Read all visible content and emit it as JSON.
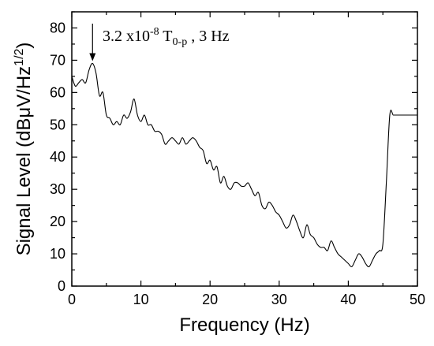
{
  "chart_data": {
    "type": "line",
    "xlabel": "Frequency (Hz)",
    "ylabel": {
      "main": "Signal Level (dBμV/Hz",
      "sup": "1/2",
      "close": ")"
    },
    "xlim": [
      0,
      50
    ],
    "ylim": [
      0,
      85
    ],
    "xticks": [
      0,
      10,
      20,
      30,
      40,
      50
    ],
    "yticks": [
      0,
      10,
      20,
      30,
      40,
      50,
      60,
      70,
      80
    ],
    "grid": false,
    "series": [
      {
        "color": "#000000",
        "x": [
          0,
          0.5,
          1,
          1.5,
          2,
          2.5,
          3,
          3.5,
          4,
          4.5,
          5,
          5.5,
          6,
          6.5,
          7,
          7.5,
          8,
          8.5,
          9,
          9.5,
          10,
          10.5,
          11,
          11.5,
          12,
          12.5,
          13,
          13.5,
          14,
          14.5,
          15,
          15.5,
          16,
          16.5,
          17,
          17.5,
          18,
          18.5,
          19,
          19.5,
          20,
          20.5,
          21,
          21.5,
          22,
          22.5,
          23,
          23.5,
          24,
          24.5,
          25,
          25.5,
          26,
          26.5,
          27,
          27.5,
          28,
          28.5,
          29,
          29.5,
          30,
          30.5,
          31,
          31.5,
          32,
          32.5,
          33,
          33.5,
          34,
          34.5,
          35,
          35.5,
          36,
          36.5,
          37,
          37.5,
          38,
          38.5,
          39,
          39.5,
          40,
          40.5,
          41,
          41.5,
          42,
          42.5,
          43,
          43.5,
          44,
          44.5,
          45,
          45.5,
          46,
          46.5,
          47,
          47.5,
          48,
          48.5,
          49,
          49.5,
          50
        ],
        "y": [
          65,
          62,
          63,
          64,
          63,
          67,
          69,
          66,
          59,
          60,
          53,
          52,
          50,
          51,
          50,
          53,
          52,
          54,
          58,
          53,
          51,
          53,
          50,
          50,
          48,
          48,
          47,
          44,
          45,
          46,
          45,
          44,
          46,
          44,
          45,
          46,
          45,
          43,
          42,
          38,
          39,
          36,
          37,
          32,
          34,
          31,
          30,
          32,
          32,
          31,
          31,
          32,
          30,
          28,
          29,
          25,
          24,
          26,
          25,
          23,
          22,
          20,
          18,
          19,
          22,
          20,
          17,
          15,
          19,
          16,
          15,
          13,
          12,
          12,
          11,
          14,
          12,
          10,
          9,
          8,
          7,
          6,
          8,
          10,
          9,
          7,
          6,
          8,
          10,
          11,
          13,
          32,
          53,
          53,
          53,
          53,
          53,
          53,
          53,
          53,
          53
        ]
      }
    ],
    "annotations": [
      {
        "text_main": "3.2 x10",
        "text_sup": "-8",
        "text_unit": " T",
        "text_sub": "0-p",
        "text_tail": " , 3 Hz",
        "x": 3,
        "y": 69
      }
    ]
  }
}
